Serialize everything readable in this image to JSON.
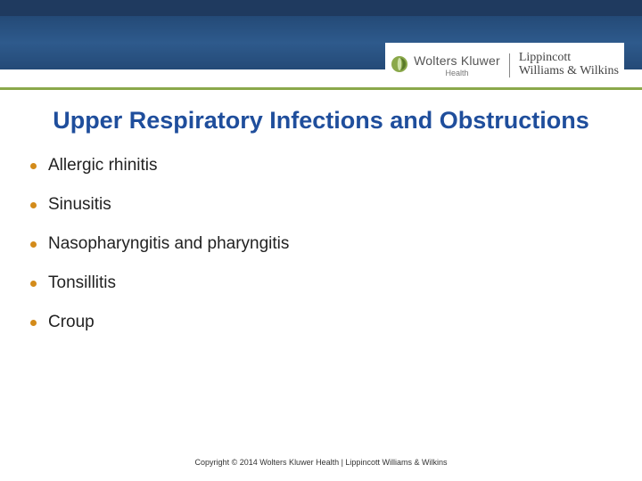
{
  "colors": {
    "title": "#1f4e9c",
    "bullet": "#d38b1a",
    "band_top": "#1f3a5f",
    "band_main_from": "#244a77",
    "band_main_to": "#2e5a8c",
    "accent": "#8aa84a"
  },
  "header": {
    "wk_name": "Wolters Kluwer",
    "wk_sub": "Health",
    "lww_line1": "Lippincott",
    "lww_line2": "Williams & Wilkins"
  },
  "title": "Upper Respiratory Infections and Obstructions",
  "bullets": [
    "Allergic rhinitis",
    "Sinusitis",
    "Nasopharyngitis and pharyngitis",
    "Tonsillitis",
    "Croup"
  ],
  "footer": "Copyright © 2014 Wolters Kluwer Health | Lippincott Williams & Wilkins"
}
